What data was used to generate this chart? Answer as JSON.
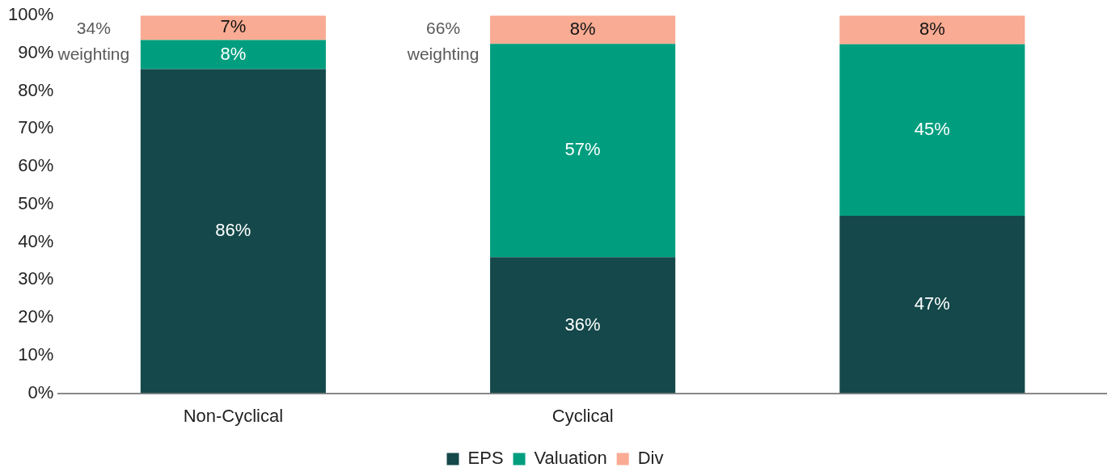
{
  "chart_data": {
    "type": "bar",
    "stacked": true,
    "categories": [
      "Non-Cyclical",
      "Cyclical",
      null
    ],
    "series": [
      {
        "name": "EPS",
        "color": "#14484a",
        "values": [
          85.8,
          36,
          47
        ],
        "value_labels": [
          "86%",
          "36%",
          "47%"
        ]
      },
      {
        "name": "Valuation",
        "color": "#009e7f",
        "values": [
          7.7,
          56.5,
          45.4
        ],
        "value_labels": [
          "8%",
          "57%",
          "45%"
        ]
      },
      {
        "name": "Div",
        "color": "#f9ab93",
        "values": [
          6.5,
          7.5,
          7.6
        ],
        "value_labels": [
          "7%",
          "8%",
          "8%"
        ]
      }
    ],
    "ylim": [
      0,
      100
    ],
    "yticks": [
      {
        "value": 0,
        "label": "0%"
      },
      {
        "value": 10,
        "label": "10%"
      },
      {
        "value": 20,
        "label": "20%"
      },
      {
        "value": 30,
        "label": "30%"
      },
      {
        "value": 40,
        "label": "40%"
      },
      {
        "value": 50,
        "label": "50%"
      },
      {
        "value": 60,
        "label": "60%"
      },
      {
        "value": 70,
        "label": "70%"
      },
      {
        "value": 80,
        "label": "80%"
      },
      {
        "value": 90,
        "label": "90%"
      },
      {
        "value": 100,
        "label": "100%"
      }
    ],
    "grid": false,
    "legend": "bottom",
    "annotations": [
      "34% weighting",
      "66% weighting"
    ]
  }
}
